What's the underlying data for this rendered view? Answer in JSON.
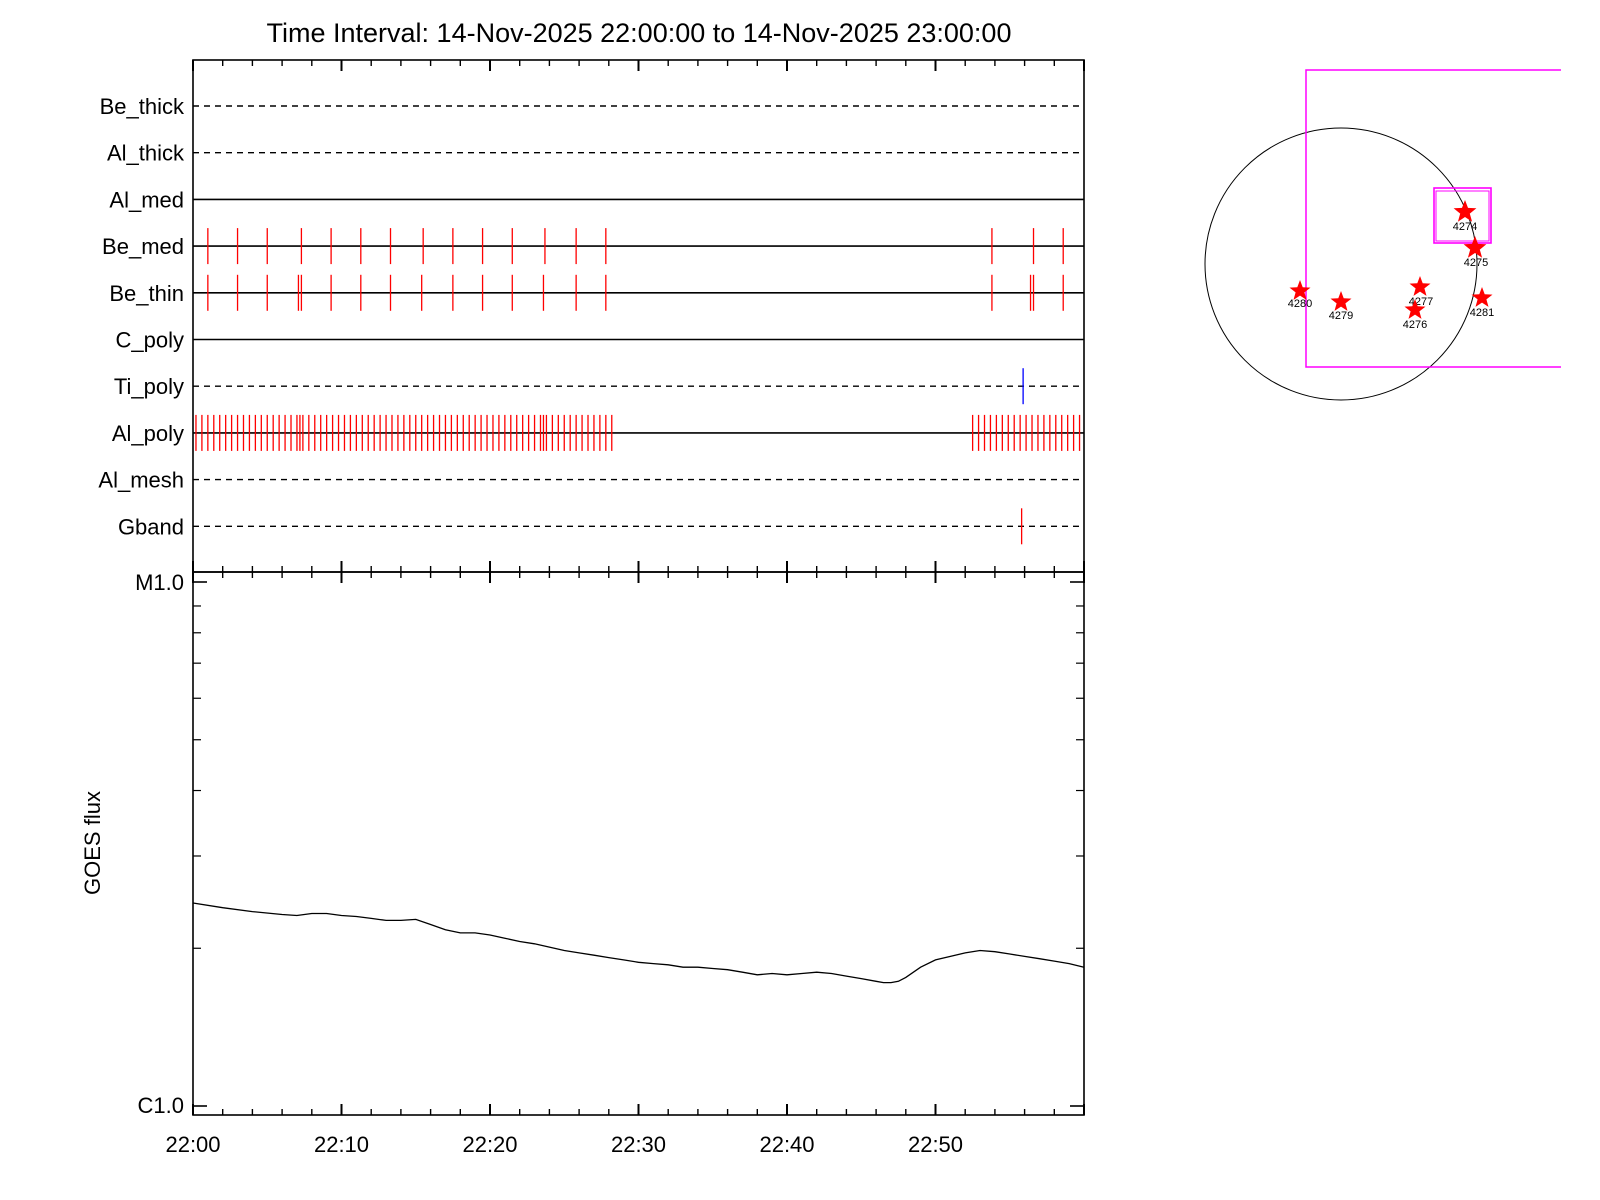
{
  "chart_data": [
    {
      "type": "timeline",
      "title": "Time Interval: 14-Nov-2025 22:00:00 to 14-Nov-2025 23:00:00",
      "x_tick_labels": [
        "22:00",
        "22:10",
        "22:20",
        "22:30",
        "22:40",
        "22:50"
      ],
      "x_ticks_minutes": [
        0,
        10,
        20,
        30,
        40,
        50
      ],
      "x_range_minutes": [
        0,
        60
      ],
      "colors": {
        "normal": "#ff0000",
        "ti_event": "#0000ff",
        "axis": "#000000"
      },
      "channels": [
        {
          "name": "Be_thick",
          "line_style": "dashed",
          "events": []
        },
        {
          "name": "Al_thick",
          "line_style": "dashed",
          "events": []
        },
        {
          "name": "Al_med",
          "line_style": "solid",
          "events": []
        },
        {
          "name": "Be_med",
          "line_style": "solid",
          "events": [
            1.0,
            3.0,
            5.0,
            7.3,
            9.3,
            11.3,
            13.3,
            15.5,
            17.5,
            19.5,
            21.5,
            23.7,
            25.8,
            27.8,
            53.8,
            56.6,
            58.6
          ]
        },
        {
          "name": "Be_thin",
          "line_style": "solid",
          "events": [
            1.0,
            3.0,
            5.0,
            7.1,
            7.3,
            9.3,
            11.3,
            13.3,
            15.4,
            17.5,
            19.5,
            21.5,
            23.6,
            25.8,
            27.8,
            53.8,
            56.4,
            56.6,
            58.6
          ]
        },
        {
          "name": "C_poly",
          "line_style": "solid",
          "events": []
        },
        {
          "name": "Ti_poly",
          "line_style": "dashed",
          "color": "#0000ff",
          "events": [
            55.9
          ]
        },
        {
          "name": "Al_poly",
          "line_style": "solid",
          "events": [
            0.2,
            0.6,
            1.0,
            1.4,
            1.8,
            2.2,
            2.6,
            3.0,
            3.4,
            3.8,
            4.2,
            4.6,
            5.0,
            5.4,
            5.8,
            6.2,
            6.6,
            7.0,
            7.2,
            7.4,
            7.8,
            8.2,
            8.6,
            9.0,
            9.4,
            9.8,
            10.2,
            10.6,
            11.0,
            11.4,
            11.8,
            12.2,
            12.6,
            13.0,
            13.4,
            13.8,
            14.2,
            14.6,
            15.0,
            15.4,
            15.8,
            16.2,
            16.6,
            17.0,
            17.4,
            17.8,
            18.2,
            18.6,
            19.0,
            19.4,
            19.8,
            20.2,
            20.6,
            21.0,
            21.4,
            21.8,
            22.2,
            22.6,
            23.0,
            23.4,
            23.6,
            23.8,
            24.2,
            24.6,
            25.0,
            25.4,
            25.8,
            26.2,
            26.6,
            27.0,
            27.4,
            27.8,
            28.2,
            52.5,
            52.9,
            53.3,
            53.7,
            54.1,
            54.5,
            54.9,
            55.3,
            55.7,
            56.1,
            56.5,
            56.9,
            57.3,
            57.7,
            58.1,
            58.5,
            58.9,
            59.3,
            59.7
          ]
        },
        {
          "name": "Al_mesh",
          "line_style": "dashed",
          "events": []
        },
        {
          "name": "Gband",
          "line_style": "dashed",
          "events": [
            55.8
          ]
        }
      ]
    },
    {
      "type": "line",
      "ylabel": "GOES flux",
      "y_scale": "log",
      "y_tick_labels": [
        "M1.0",
        "C1.0"
      ],
      "ylim_wm2": [
        1e-06,
        1e-05
      ],
      "x_tick_labels": [
        "22:00",
        "22:10",
        "22:20",
        "22:30",
        "22:40",
        "22:50"
      ],
      "x_range_minutes": [
        0,
        60
      ],
      "series": [
        {
          "x_minutes": [
            0,
            2,
            4,
            6,
            7,
            8,
            9,
            10,
            11,
            12,
            13,
            14,
            15,
            16,
            17,
            18,
            19,
            20,
            21,
            22,
            23,
            24,
            25,
            26,
            27,
            28,
            29,
            30,
            31,
            32,
            33,
            34,
            35,
            36,
            37,
            38,
            39,
            40,
            41,
            42,
            43,
            44,
            45,
            46,
            46.5,
            47,
            47.5,
            48,
            49,
            50,
            51,
            52,
            53,
            54,
            55,
            56,
            57,
            58,
            59,
            60
          ],
          "y_wm2": [
            2.44e-06,
            2.39e-06,
            2.35e-06,
            2.32e-06,
            2.31e-06,
            2.33e-06,
            2.33e-06,
            2.31e-06,
            2.3e-06,
            2.28e-06,
            2.26e-06,
            2.26e-06,
            2.27e-06,
            2.22e-06,
            2.17e-06,
            2.14e-06,
            2.14e-06,
            2.12e-06,
            2.09e-06,
            2.06e-06,
            2.04e-06,
            2.01e-06,
            1.98e-06,
            1.96e-06,
            1.94e-06,
            1.92e-06,
            1.9e-06,
            1.88e-06,
            1.87e-06,
            1.86e-06,
            1.84e-06,
            1.84e-06,
            1.83e-06,
            1.82e-06,
            1.8e-06,
            1.78e-06,
            1.79e-06,
            1.78e-06,
            1.79e-06,
            1.8e-06,
            1.79e-06,
            1.77e-06,
            1.75e-06,
            1.73e-06,
            1.72e-06,
            1.72e-06,
            1.73e-06,
            1.76e-06,
            1.84e-06,
            1.9e-06,
            1.93e-06,
            1.96e-06,
            1.98e-06,
            1.97e-06,
            1.95e-06,
            1.93e-06,
            1.91e-06,
            1.89e-06,
            1.87e-06,
            1.84e-06
          ]
        }
      ]
    },
    {
      "type": "solar_map",
      "colors": {
        "disk": "#000000",
        "fov": "#ff00ff",
        "marker": "#ff0000",
        "label": "#000000"
      },
      "regions": [
        "4274",
        "4275",
        "4277",
        "4276",
        "4281",
        "4280",
        "4279"
      ]
    }
  ]
}
